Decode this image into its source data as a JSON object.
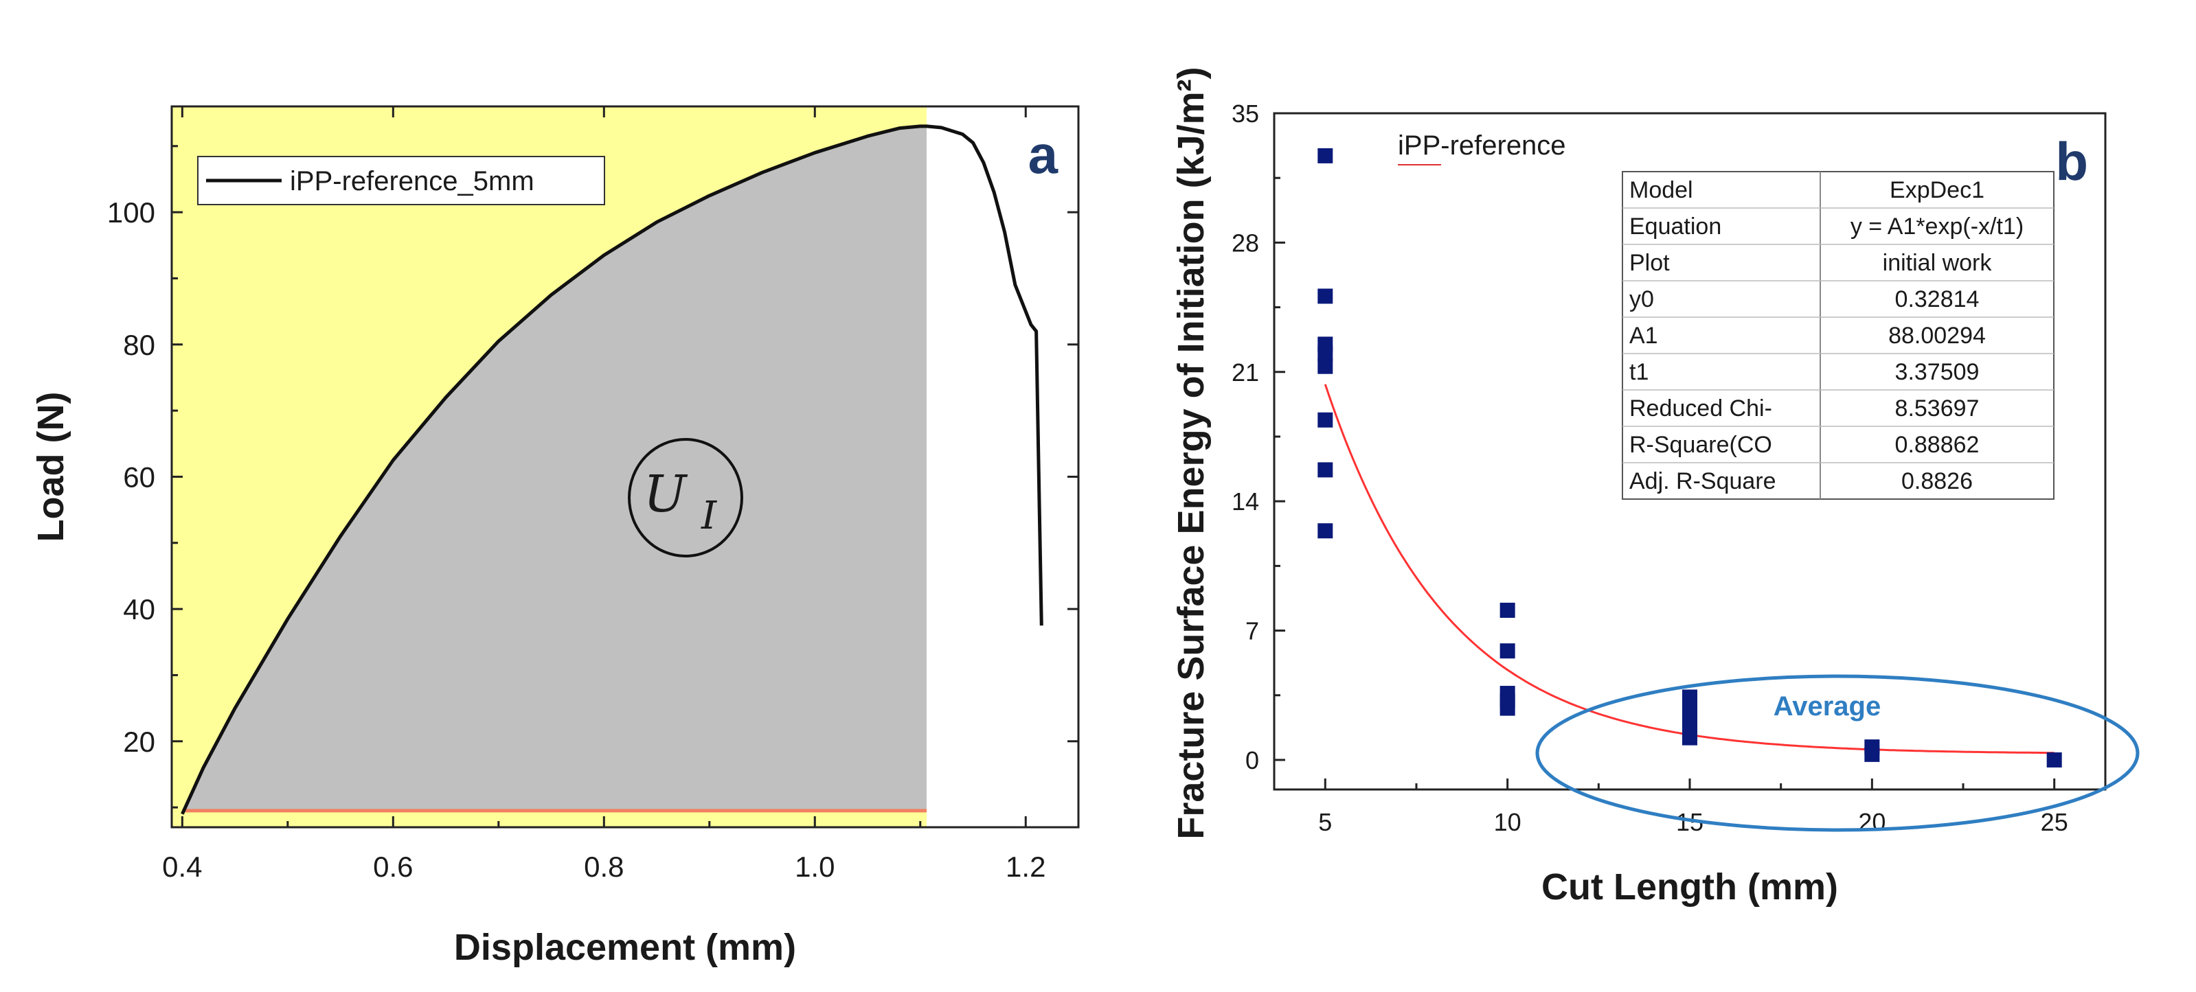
{
  "chart_data": [
    {
      "id": "a",
      "type": "line",
      "panel_label": "a",
      "xlabel": "Displacement (mm)",
      "ylabel": "Load (N)",
      "xlim": [
        0.39,
        1.25
      ],
      "ylim": [
        7,
        116
      ],
      "xticks": [
        0.4,
        0.6,
        0.8,
        1.0,
        1.2
      ],
      "xtick_labels": [
        "0.4",
        "0.6",
        "0.8",
        "1.0",
        "1.2"
      ],
      "yticks": [
        20,
        40,
        60,
        80,
        100
      ],
      "ytick_labels": [
        "20",
        "40",
        "60",
        "80",
        "100"
      ],
      "legend": [
        "iPP-reference_5mm"
      ],
      "legend_position": "top-left",
      "shaded_region": {
        "x_start": 0.4,
        "x_end": 1.106,
        "baseline": 9.5,
        "label_main": "U",
        "label_sub": "I"
      },
      "series": [
        {
          "name": "iPP-reference_5mm",
          "x": [
            0.4,
            0.42,
            0.45,
            0.5,
            0.55,
            0.6,
            0.65,
            0.7,
            0.75,
            0.8,
            0.85,
            0.9,
            0.95,
            1.0,
            1.05,
            1.08,
            1.1,
            1.106,
            1.12,
            1.14,
            1.15,
            1.16,
            1.17,
            1.18,
            1.19,
            1.2,
            1.205,
            1.21,
            1.213,
            1.215
          ],
          "values": [
            9,
            16,
            25,
            38.5,
            51,
            62.5,
            72,
            80.5,
            87.5,
            93.5,
            98.5,
            102.5,
            106,
            109,
            111.5,
            112.7,
            113,
            113,
            112.8,
            111.8,
            110.5,
            107.5,
            103,
            97,
            89,
            85,
            83,
            82,
            55,
            37.5
          ]
        }
      ]
    },
    {
      "id": "b",
      "type": "scatter",
      "panel_label": "b",
      "xlabel": "Cut Length (mm)",
      "ylabel": "Fracture Surface Energy of Initiation (kJ/m²)",
      "xlim": [
        3.6,
        26.4
      ],
      "ylim": [
        -1.6,
        35
      ],
      "xticks": [
        5,
        10,
        15,
        20,
        25
      ],
      "xtick_labels": [
        "5",
        "10",
        "15",
        "20",
        "25"
      ],
      "yticks": [
        0,
        7,
        14,
        21,
        28,
        35
      ],
      "ytick_labels": [
        "0",
        "7",
        "14",
        "21",
        "28",
        "35"
      ],
      "annotation": "iPP-reference",
      "average_label": "Average",
      "series": [
        {
          "name": "initial work",
          "x": [
            5,
            5,
            5,
            5,
            5,
            5,
            5,
            5,
            10,
            10,
            10,
            10,
            10,
            15,
            15,
            15,
            15,
            15,
            20,
            20,
            25
          ],
          "values": [
            32.7,
            25.1,
            22.5,
            22.0,
            21.3,
            18.4,
            15.7,
            12.4,
            8.1,
            5.9,
            3.6,
            3.2,
            2.8,
            3.4,
            2.9,
            2.4,
            2.0,
            1.2,
            0.7,
            0.3,
            0.0
          ]
        }
      ],
      "fit": {
        "model": "ExpDec1",
        "y0": 0.32814,
        "A1": 88.00294,
        "t1": 3.37509,
        "x_range": [
          5,
          25
        ]
      },
      "fit_table": {
        "rows": [
          [
            "Model",
            "ExpDec1"
          ],
          [
            "Equation",
            "y = A1*exp(-x/t1)"
          ],
          [
            "Plot",
            "initial work"
          ],
          [
            "y0",
            "0.32814"
          ],
          [
            "A1",
            "88.00294"
          ],
          [
            "t1",
            "3.37509"
          ],
          [
            "Reduced Chi-",
            "8.53697"
          ],
          [
            "R-Square(CO",
            "0.88862"
          ],
          [
            "Adj. R-Square",
            "0.8826"
          ]
        ]
      }
    }
  ],
  "colors": {
    "panel_a_background": "#ffff99",
    "panel_a_area": "#c0c0c0",
    "panel_a_baseline": "#f08060",
    "curve": "#111111",
    "marker": "#0a1a7a",
    "fit_line": "#ff3333",
    "average_ellipse": "#2f7ec2",
    "panel_label": "#1f3a6b"
  }
}
